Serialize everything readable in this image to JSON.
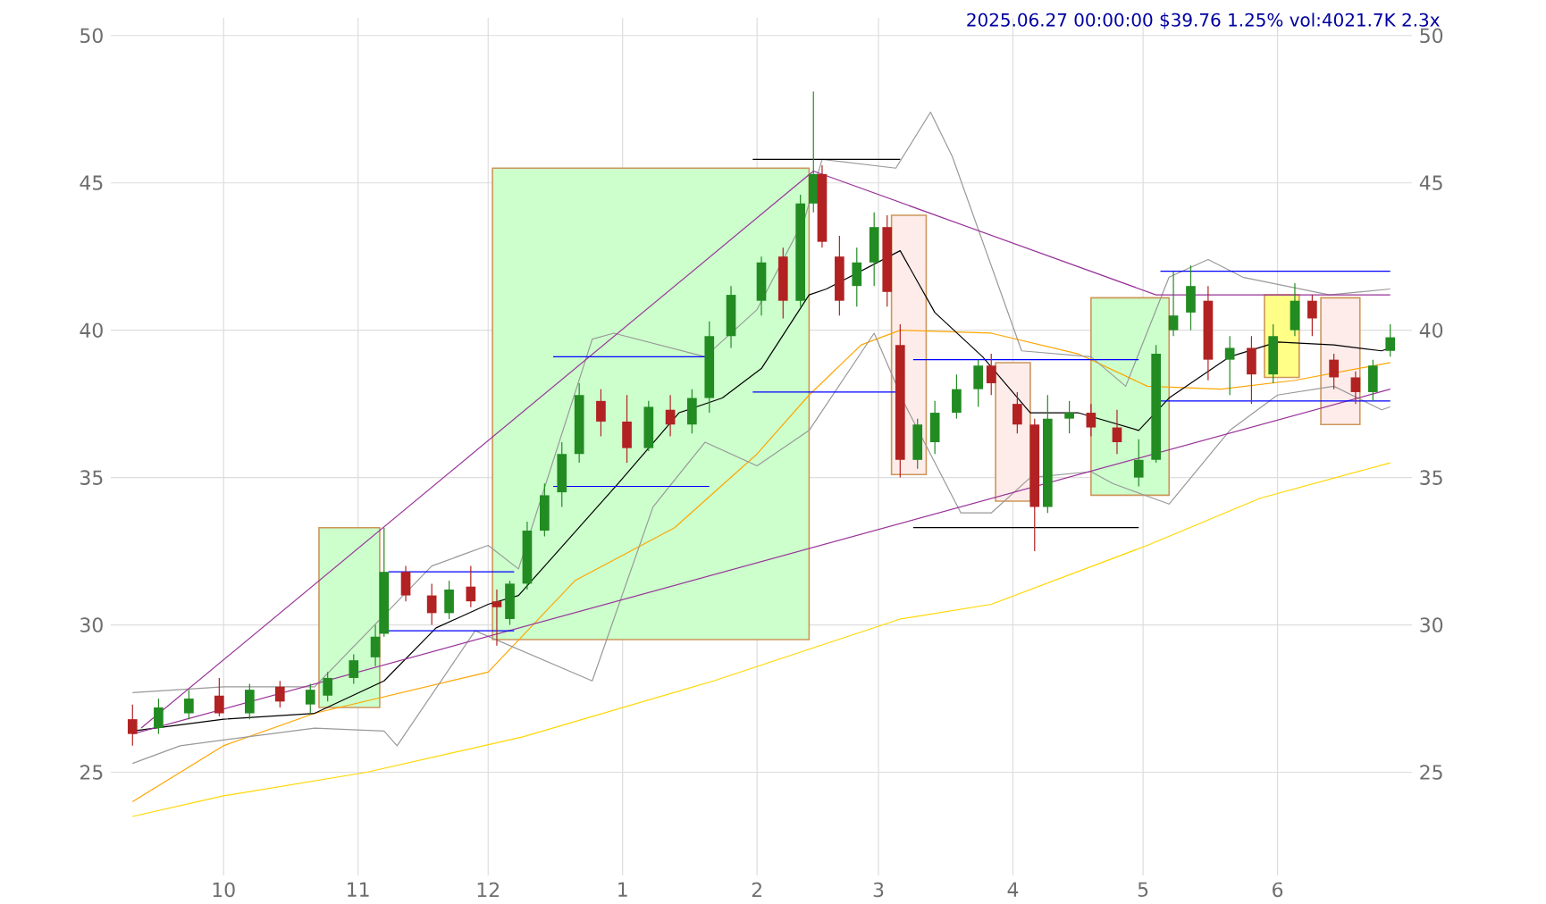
{
  "chart_data": {
    "type": "candlestick",
    "title": "2025.06.27 00:00:00 $39.76 1.25% vol:4021.7K 2.3x",
    "xlim": [
      "2024-09-05",
      "2025-07-02"
    ],
    "ylim": [
      21.5,
      50.6
    ],
    "y2lim": [
      21.5,
      50.6
    ],
    "grid": true,
    "xticks": [
      {
        "value": "2024-10-01",
        "label": "10"
      },
      {
        "value": "2024-11-01",
        "label": "11"
      },
      {
        "value": "2024-12-01",
        "label": "12"
      },
      {
        "value": "2025-01-01",
        "label": "1"
      },
      {
        "value": "2025-02-01",
        "label": "2"
      },
      {
        "value": "2025-03-01",
        "label": "3"
      },
      {
        "value": "2025-04-01",
        "label": "4"
      },
      {
        "value": "2025-05-01",
        "label": "5"
      },
      {
        "value": "2025-06-01",
        "label": "6"
      }
    ],
    "yticks": [
      25,
      30,
      35,
      40,
      45,
      50
    ],
    "y2ticks": [
      25,
      30,
      35,
      40,
      45,
      50
    ],
    "x": [
      "2024-09-10",
      "2024-09-16",
      "2024-09-23",
      "2024-09-30",
      "2024-10-07",
      "2024-10-14",
      "2024-10-21",
      "2024-10-25",
      "2024-10-31",
      "2024-11-05",
      "2024-11-07",
      "2024-11-12",
      "2024-11-18",
      "2024-11-22",
      "2024-11-27",
      "2024-12-03",
      "2024-12-06",
      "2024-12-10",
      "2024-12-14",
      "2024-12-18",
      "2024-12-22",
      "2024-12-27",
      "2025-01-02",
      "2025-01-07",
      "2025-01-12",
      "2025-01-17",
      "2025-01-21",
      "2025-01-26",
      "2025-02-02",
      "2025-02-07",
      "2025-02-11",
      "2025-02-14",
      "2025-02-16",
      "2025-02-20",
      "2025-02-24",
      "2025-02-28",
      "2025-03-03",
      "2025-03-06",
      "2025-03-10",
      "2025-03-14",
      "2025-03-19",
      "2025-03-24",
      "2025-03-27",
      "2025-04-02",
      "2025-04-06",
      "2025-04-09",
      "2025-04-14",
      "2025-04-19",
      "2025-04-25",
      "2025-04-30",
      "2025-05-04",
      "2025-05-08",
      "2025-05-12",
      "2025-05-16",
      "2025-05-21",
      "2025-05-26",
      "2025-05-31",
      "2025-06-05",
      "2025-06-09",
      "2025-06-14",
      "2025-06-19",
      "2025-06-23",
      "2025-06-27"
    ],
    "ohlc": [
      [
        26.8,
        27.3,
        25.9,
        26.3
      ],
      [
        26.5,
        27.5,
        26.3,
        27.2
      ],
      [
        27.0,
        27.8,
        26.8,
        27.5
      ],
      [
        27.6,
        28.2,
        26.9,
        27.0
      ],
      [
        27.0,
        28.0,
        26.8,
        27.8
      ],
      [
        27.9,
        28.1,
        27.2,
        27.4
      ],
      [
        27.3,
        28.0,
        27.0,
        27.8
      ],
      [
        27.6,
        28.4,
        27.4,
        28.2
      ],
      [
        28.2,
        29.0,
        28.0,
        28.8
      ],
      [
        28.9,
        30.0,
        28.6,
        29.6
      ],
      [
        29.7,
        33.3,
        29.6,
        31.8
      ],
      [
        31.8,
        32.0,
        30.8,
        31.0
      ],
      [
        31.0,
        31.4,
        30.0,
        30.4
      ],
      [
        30.4,
        31.5,
        30.2,
        31.2
      ],
      [
        31.3,
        32.0,
        30.6,
        30.8
      ],
      [
        30.8,
        31.2,
        29.3,
        30.6
      ],
      [
        30.2,
        31.5,
        30.0,
        31.4
      ],
      [
        31.4,
        33.5,
        31.2,
        33.2
      ],
      [
        33.2,
        34.8,
        33.0,
        34.4
      ],
      [
        34.5,
        36.2,
        34.0,
        35.8
      ],
      [
        35.8,
        38.2,
        35.5,
        37.8
      ],
      [
        37.6,
        38.0,
        36.4,
        36.9
      ],
      [
        36.9,
        37.8,
        35.5,
        36.0
      ],
      [
        36.0,
        37.6,
        35.9,
        37.4
      ],
      [
        37.3,
        37.8,
        36.4,
        36.8
      ],
      [
        36.8,
        38.0,
        36.5,
        37.7
      ],
      [
        37.7,
        40.3,
        37.2,
        39.8
      ],
      [
        39.8,
        41.5,
        39.4,
        41.2
      ],
      [
        41.0,
        42.5,
        40.5,
        42.3
      ],
      [
        42.5,
        42.8,
        40.4,
        41.0
      ],
      [
        41.0,
        44.6,
        40.8,
        44.3
      ],
      [
        44.3,
        48.1,
        44.0,
        45.3
      ],
      [
        45.3,
        45.6,
        42.8,
        43.0
      ],
      [
        42.5,
        43.2,
        40.5,
        41.0
      ],
      [
        41.5,
        42.8,
        40.8,
        42.3
      ],
      [
        42.3,
        44.0,
        41.5,
        43.5
      ],
      [
        43.5,
        43.9,
        40.8,
        41.3
      ],
      [
        39.5,
        40.2,
        35.0,
        35.6
      ],
      [
        35.6,
        37.0,
        35.3,
        36.8
      ],
      [
        36.2,
        37.6,
        35.8,
        37.2
      ],
      [
        37.2,
        38.5,
        37.0,
        38.0
      ],
      [
        38.0,
        39.0,
        37.4,
        38.8
      ],
      [
        38.8,
        39.2,
        37.8,
        38.2
      ],
      [
        37.5,
        37.9,
        36.5,
        36.8
      ],
      [
        36.8,
        37.0,
        32.5,
        34.0
      ],
      [
        34.0,
        37.8,
        33.8,
        37.0
      ],
      [
        37.0,
        37.6,
        36.5,
        37.2
      ],
      [
        37.2,
        37.5,
        36.4,
        36.7
      ],
      [
        36.7,
        37.3,
        35.8,
        36.2
      ],
      [
        35.0,
        36.3,
        34.7,
        35.6
      ],
      [
        35.6,
        39.5,
        35.5,
        39.2
      ],
      [
        40.0,
        42.0,
        39.8,
        40.5
      ],
      [
        40.6,
        42.2,
        40.0,
        41.5
      ],
      [
        41.0,
        41.5,
        38.3,
        39.0
      ],
      [
        39.0,
        39.8,
        37.8,
        39.4
      ],
      [
        39.4,
        39.8,
        37.5,
        38.5
      ],
      [
        38.5,
        40.2,
        38.2,
        39.8
      ],
      [
        40.0,
        41.6,
        39.8,
        41.0
      ],
      [
        41.0,
        41.2,
        39.8,
        40.4
      ],
      [
        39.0,
        39.2,
        38.0,
        38.4
      ],
      [
        38.4,
        38.6,
        37.5,
        37.9
      ],
      [
        37.9,
        39.0,
        37.6,
        38.8
      ],
      [
        39.3,
        40.2,
        39.1,
        39.76
      ]
    ],
    "colors": [
      "#b22222",
      "#228b22",
      "#228b22",
      "#b22222",
      "#228b22",
      "#b22222",
      "#228b22",
      "#228b22",
      "#228b22",
      "#228b22",
      "#228b22",
      "#b22222",
      "#b22222",
      "#228b22",
      "#b22222",
      "#b22222",
      "#228b22",
      "#228b22",
      "#228b22",
      "#228b22",
      "#228b22",
      "#b22222",
      "#b22222",
      "#228b22",
      "#b22222",
      "#228b22",
      "#228b22",
      "#228b22",
      "#228b22",
      "#b22222",
      "#228b22",
      "#228b22",
      "#b22222",
      "#b22222",
      "#228b22",
      "#228b22",
      "#b22222",
      "#b22222",
      "#228b22",
      "#228b22",
      "#228b22",
      "#228b22",
      "#b22222",
      "#b22222",
      "#b22222",
      "#228b22",
      "#228b22",
      "#b22222",
      "#b22222",
      "#228b22",
      "#228b22",
      "#228b22",
      "#228b22",
      "#b22222",
      "#228b22",
      "#b22222",
      "#228b22",
      "#228b22",
      "#b22222",
      "#b22222",
      "#b22222",
      "#228b22",
      "#228b22"
    ],
    "series": [
      {
        "type": "area",
        "color": "#ccffcc",
        "x": [
          "2024-10-23",
          "2024-10-23",
          "2024-11-06",
          "2024-11-06"
        ],
        "values": [
          27.2,
          33.3,
          33.3,
          27.2
        ]
      },
      {
        "type": "area",
        "color": "#ccffcc",
        "x": [
          "2024-12-02",
          "2024-12-02",
          "2025-02-13",
          "2025-02-13"
        ],
        "values": [
          29.5,
          45.5,
          45.5,
          29.5
        ]
      },
      {
        "type": "area",
        "color": "#fdecea",
        "x": [
          "2025-03-04",
          "2025-03-04",
          "2025-03-12",
          "2025-03-12"
        ],
        "values": [
          35.1,
          43.9,
          43.9,
          35.1
        ]
      },
      {
        "type": "area",
        "color": "#fdecea",
        "x": [
          "2025-03-28",
          "2025-03-28",
          "2025-04-05",
          "2025-04-05"
        ],
        "values": [
          34.2,
          38.9,
          38.9,
          34.2
        ]
      },
      {
        "type": "area",
        "color": "#ccffcc",
        "x": [
          "2025-04-19",
          "2025-04-19",
          "2025-05-07",
          "2025-05-07"
        ],
        "values": [
          34.4,
          41.1,
          41.1,
          34.4
        ]
      },
      {
        "type": "area",
        "color": "#ffff88",
        "x": [
          "2025-05-29",
          "2025-05-29",
          "2025-06-06",
          "2025-06-06"
        ],
        "values": [
          38.4,
          41.2,
          41.2,
          38.4
        ]
      },
      {
        "type": "area",
        "color": "#fdecea",
        "x": [
          "2025-06-11",
          "2025-06-11",
          "2025-06-20",
          "2025-06-20"
        ],
        "values": [
          36.8,
          41.1,
          41.1,
          36.8
        ]
      },
      {
        "type": "line",
        "color": "#ffd700",
        "x": [
          "2024-09-10",
          "2024-10-01",
          "2024-11-03",
          "2024-12-09",
          "2025-01-22",
          "2025-03-06",
          "2025-03-27",
          "2025-05-02",
          "2025-05-28",
          "2025-06-27"
        ],
        "values": [
          23.5,
          24.2,
          25.0,
          26.2,
          28.1,
          30.2,
          30.7,
          32.7,
          34.3,
          35.5
        ]
      },
      {
        "type": "line",
        "color": "#ffa500",
        "x": [
          "2024-09-10",
          "2024-10-01",
          "2024-10-22",
          "2024-12-01",
          "2024-12-21",
          "2025-01-13",
          "2025-02-01",
          "2025-02-13",
          "2025-02-25",
          "2025-03-06",
          "2025-03-27",
          "2025-04-16",
          "2025-05-02",
          "2025-05-19",
          "2025-06-05",
          "2025-06-27"
        ],
        "values": [
          24.0,
          25.9,
          27.0,
          28.4,
          31.5,
          33.3,
          35.8,
          37.8,
          39.5,
          40.0,
          39.9,
          39.2,
          38.1,
          38.0,
          38.3,
          38.9
        ]
      },
      {
        "type": "line",
        "color": "#999999",
        "x": [
          "2024-09-10",
          "2024-10-01",
          "2024-10-22",
          "2024-11-18",
          "2024-12-01",
          "2024-12-08",
          "2024-12-25",
          "2024-12-30",
          "2025-01-20",
          "2025-02-01",
          "2025-02-12",
          "2025-02-16",
          "2025-03-05",
          "2025-03-13",
          "2025-03-18",
          "2025-04-03",
          "2025-04-19",
          "2025-04-27",
          "2025-05-07",
          "2025-05-16",
          "2025-05-24",
          "2025-06-13",
          "2025-06-27"
        ],
        "values": [
          27.7,
          27.9,
          27.9,
          32.0,
          32.7,
          31.9,
          39.7,
          39.9,
          39.1,
          40.7,
          43.8,
          45.8,
          45.5,
          47.4,
          45.9,
          39.3,
          39.1,
          38.1,
          41.8,
          42.4,
          41.8,
          41.2,
          41.4
        ]
      },
      {
        "type": "line",
        "color": "#999999",
        "x": [
          "2024-09-10",
          "2024-09-21",
          "2024-10-22",
          "2024-11-07",
          "2024-11-10",
          "2024-11-28",
          "2024-12-25",
          "2025-01-08",
          "2025-01-20",
          "2025-02-01",
          "2025-02-13",
          "2025-02-28",
          "2025-03-07",
          "2025-03-20",
          "2025-03-27",
          "2025-04-05",
          "2025-04-19",
          "2025-04-24",
          "2025-05-07",
          "2025-05-21",
          "2025-06-01",
          "2025-06-14",
          "2025-06-25",
          "2025-06-27"
        ],
        "values": [
          25.3,
          25.9,
          26.5,
          26.4,
          25.9,
          29.8,
          28.1,
          34.0,
          36.2,
          35.4,
          36.6,
          39.9,
          37.5,
          33.8,
          33.8,
          35.0,
          35.2,
          34.8,
          34.1,
          36.6,
          37.8,
          38.1,
          37.3,
          37.4
        ]
      },
      {
        "type": "line",
        "color": "#000000",
        "x": [
          "2024-09-10",
          "2024-10-01",
          "2024-10-22",
          "2024-11-07",
          "2024-11-19",
          "2024-12-01",
          "2024-12-08",
          "2024-12-31",
          "2025-01-14",
          "2025-01-24",
          "2025-02-02",
          "2025-02-13",
          "2025-02-17",
          "2025-03-06",
          "2025-03-14",
          "2025-03-25",
          "2025-04-05",
          "2025-04-16",
          "2025-04-30",
          "2025-05-07",
          "2025-05-21",
          "2025-06-01",
          "2025-06-14",
          "2025-06-25",
          "2025-06-27"
        ],
        "values": [
          26.4,
          26.8,
          27.0,
          28.1,
          29.9,
          30.7,
          31.0,
          34.8,
          37.2,
          37.7,
          38.7,
          41.2,
          41.4,
          42.7,
          40.6,
          39.1,
          37.2,
          37.2,
          36.6,
          37.7,
          39.1,
          39.6,
          39.5,
          39.3,
          39.4
        ]
      },
      {
        "type": "line",
        "color": "#993399",
        "x": [
          "2024-09-12",
          "2025-02-14"
        ],
        "values": [
          26.5,
          45.4
        ]
      },
      {
        "type": "line",
        "color": "#993399",
        "x": [
          "2025-02-14",
          "2025-05-04",
          "2025-06-27"
        ],
        "values": [
          45.4,
          41.2,
          41.2
        ]
      },
      {
        "type": "line",
        "color": "#993399",
        "x": [
          "2024-09-10",
          "2025-06-27"
        ],
        "values": [
          26.3,
          38.0
        ]
      },
      {
        "type": "line",
        "color": "#0000ff",
        "x": [
          "2024-11-08",
          "2024-12-07"
        ],
        "values": [
          31.8,
          31.8
        ]
      },
      {
        "type": "line",
        "color": "#0000ff",
        "x": [
          "2024-11-08",
          "2024-12-07"
        ],
        "values": [
          29.8,
          29.8
        ]
      },
      {
        "type": "line",
        "color": "#0000ff",
        "x": [
          "2024-12-16",
          "2025-01-21"
        ],
        "values": [
          39.1,
          39.1
        ]
      },
      {
        "type": "line",
        "color": "#0000ff",
        "x": [
          "2024-12-16",
          "2025-01-21"
        ],
        "values": [
          34.7,
          34.7
        ]
      },
      {
        "type": "line",
        "color": "#0000ff",
        "x": [
          "2025-01-31",
          "2025-03-06"
        ],
        "values": [
          37.9,
          37.9
        ]
      },
      {
        "type": "line",
        "color": "#000000",
        "x": [
          "2025-01-31",
          "2025-03-06"
        ],
        "values": [
          45.8,
          45.8
        ]
      },
      {
        "type": "line",
        "color": "#0000ff",
        "x": [
          "2025-03-09",
          "2025-04-30"
        ],
        "values": [
          39.0,
          39.0
        ]
      },
      {
        "type": "line",
        "color": "#000000",
        "x": [
          "2025-03-09",
          "2025-04-30"
        ],
        "values": [
          33.3,
          33.3
        ]
      },
      {
        "type": "line",
        "color": "#0000ff",
        "x": [
          "2025-05-05",
          "2025-06-27"
        ],
        "values": [
          42.0,
          42.0
        ]
      },
      {
        "type": "line",
        "color": "#0000ff",
        "x": [
          "2025-05-05",
          "2025-06-27"
        ],
        "values": [
          37.6,
          37.6
        ]
      }
    ]
  }
}
